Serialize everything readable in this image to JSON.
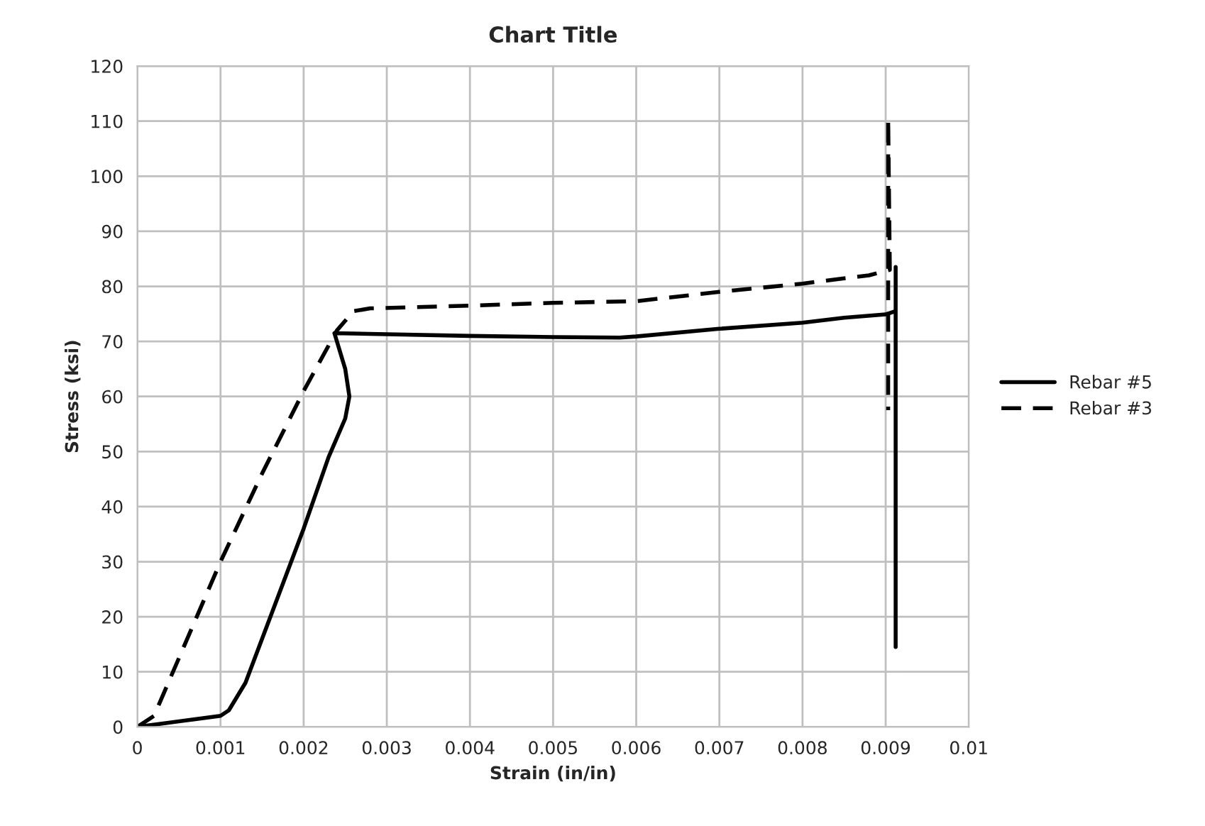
{
  "chart_data": {
    "type": "line",
    "title": "Chart Title",
    "xlabel": "Strain (in/in)",
    "ylabel": "Stress (ksi)",
    "xlim": [
      0,
      0.01
    ],
    "xticks": [
      0,
      0.001,
      0.002,
      0.003,
      0.004,
      0.005,
      0.006,
      0.007,
      0.008,
      0.009,
      0.01
    ],
    "ylim": [
      0,
      120
    ],
    "yticks": [
      0,
      10,
      20,
      30,
      40,
      50,
      60,
      70,
      80,
      90,
      100,
      110,
      120
    ],
    "grid": true,
    "legend": "right",
    "marker": "none",
    "series": [
      {
        "name": "Rebar #5",
        "color": "#000000",
        "line_style": "solid",
        "x": [
          0,
          0.001,
          0.0011,
          0.0013,
          0.0015,
          0.002,
          0.0023,
          0.0025,
          0.00255,
          0.0025,
          0.00237,
          0.003,
          0.004,
          0.005,
          0.0058,
          0.006,
          0.007,
          0.008,
          0.0085,
          0.009,
          0.00912,
          0.00912,
          0.00912
        ],
        "values": [
          0,
          2,
          3,
          8,
          16,
          36,
          49,
          56,
          60,
          65,
          71.5,
          71.3,
          71,
          70.8,
          70.7,
          70.9,
          72.3,
          73.4,
          74.3,
          74.9,
          75.5,
          83.5,
          14.5
        ]
      },
      {
        "name": "Rebar #3",
        "color": "#000000",
        "line_style": "dashed",
        "x": [
          0,
          0.0002,
          0.001,
          0.0015,
          0.002,
          0.0024,
          0.0026,
          0.0028,
          0.004,
          0.005,
          0.006,
          0.007,
          0.008,
          0.0088,
          0.00905,
          0.00903,
          0.00903
        ],
        "values": [
          0,
          2,
          30,
          46,
          61,
          72,
          75.5,
          76,
          76.5,
          77,
          77.3,
          79,
          80.5,
          82,
          83,
          110.5,
          57.5
        ]
      }
    ]
  }
}
